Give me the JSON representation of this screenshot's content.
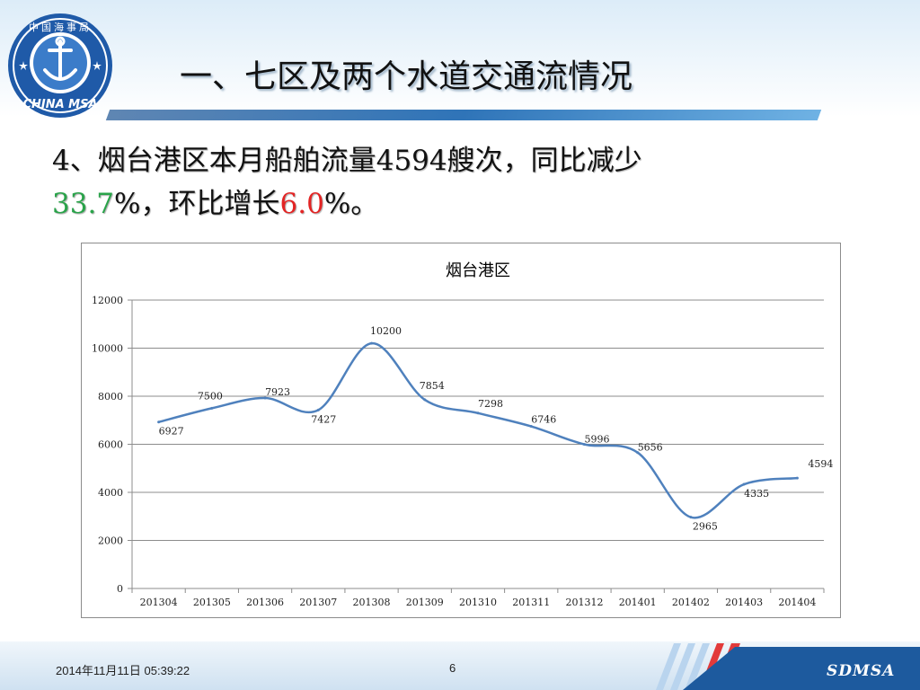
{
  "slide": {
    "title": "一、七区及两个水道交通流情况",
    "subtitle_prefix": "4、烟台港区本月船舶流量4594艘次，同比减少",
    "subtitle_yoy": "33.7",
    "subtitle_mid": "%，环比增长",
    "subtitle_mom": "6.0",
    "subtitle_suffix": "%。",
    "logo_text": "CHINA MSA",
    "logo_chars": "中国海事局",
    "accent_green": "#2aa34a",
    "accent_red": "#e32424",
    "line_color": "#4f81bd"
  },
  "footer": {
    "date": "2014年11月11日  05:39:22",
    "page": "6",
    "brand": "SDMSA"
  },
  "chart_data": {
    "type": "line",
    "title": "烟台港区",
    "categories": [
      "201304",
      "201305",
      "201306",
      "201307",
      "201308",
      "201309",
      "201310",
      "201311",
      "201312",
      "201401",
      "201402",
      "201403",
      "201404"
    ],
    "series": [
      {
        "values": [
          6927,
          7500,
          7923,
          7427,
          10200,
          7854,
          7298,
          6746,
          5996,
          5656,
          2965,
          4335,
          4594
        ]
      }
    ],
    "ylim": [
      0,
      12000
    ],
    "yticks": [
      0,
      2000,
      4000,
      6000,
      8000,
      10000,
      12000
    ],
    "grid": true,
    "smooth": true,
    "xlabel": "",
    "ylabel": ""
  }
}
